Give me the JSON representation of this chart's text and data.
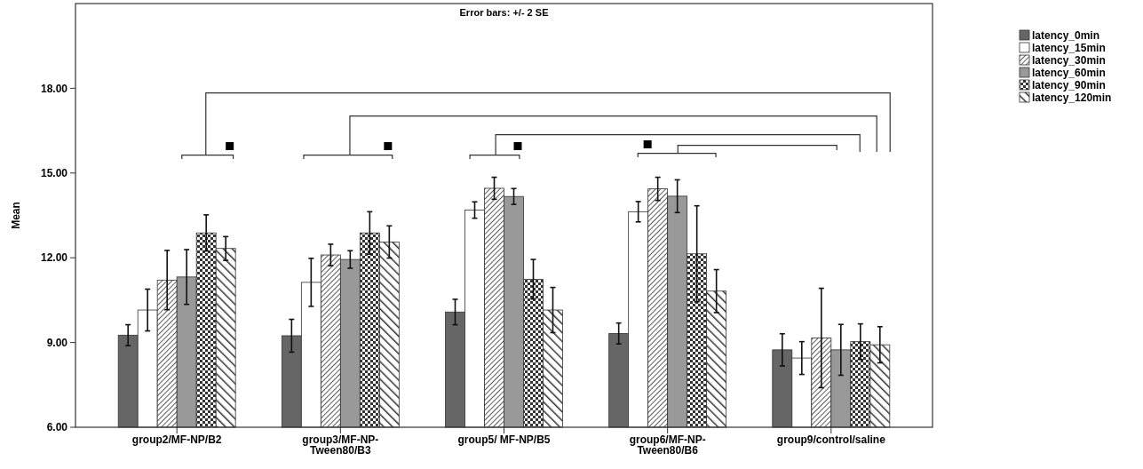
{
  "chart_data": {
    "type": "bar",
    "title": "Error bars: +/- 2 SE",
    "ylabel": "Mean",
    "categories": [
      "group2/MF-NP/B2",
      "group3/MF-NP-Tween80/B3",
      "group5/ MF-NP/B5",
      "group6/MF-NP-Tween80/B6",
      "group9/control/saline"
    ],
    "series": [
      {
        "name": "latency_0min",
        "color": "#666666",
        "values": [
          9.26,
          9.24,
          10.08,
          9.32,
          8.74
        ],
        "errors": [
          0.37,
          0.58,
          0.45,
          0.37,
          0.57
        ]
      },
      {
        "name": "latency_15min",
        "color": "#ffffff",
        "values": [
          10.15,
          11.13,
          13.69,
          13.63,
          8.45
        ],
        "errors": [
          0.74,
          0.85,
          0.29,
          0.36,
          0.58
        ]
      },
      {
        "name": "latency_30min",
        "color": "#333333",
        "values": [
          11.21,
          12.1,
          14.46,
          14.44,
          9.16
        ],
        "errors": [
          1.05,
          0.38,
          0.39,
          0.41,
          1.76
        ]
      },
      {
        "name": "latency_60min",
        "color": "#999999",
        "values": [
          11.32,
          11.94,
          14.17,
          14.18,
          8.74
        ],
        "errors": [
          0.97,
          0.31,
          0.28,
          0.58,
          0.9
        ]
      },
      {
        "name": "latency_90min",
        "color": "#333333",
        "values": [
          12.88,
          12.88,
          11.24,
          12.14,
          9.03
        ],
        "errors": [
          0.64,
          0.75,
          0.7,
          1.7,
          0.63
        ]
      },
      {
        "name": "latency_120min",
        "color": "#333333",
        "values": [
          12.33,
          12.56,
          10.15,
          10.82,
          8.92
        ],
        "errors": [
          0.42,
          0.57,
          0.8,
          0.76,
          0.64
        ]
      }
    ],
    "ylim": [
      6,
      21
    ],
    "yticks": [
      {
        "value": 6,
        "label": "6.00"
      },
      {
        "value": 9,
        "label": "9.00"
      },
      {
        "value": 12,
        "label": "12.00"
      },
      {
        "value": 15,
        "label": "15.00"
      },
      {
        "value": 18,
        "label": "18.00"
      }
    ],
    "grid": false,
    "legend": "top right"
  }
}
